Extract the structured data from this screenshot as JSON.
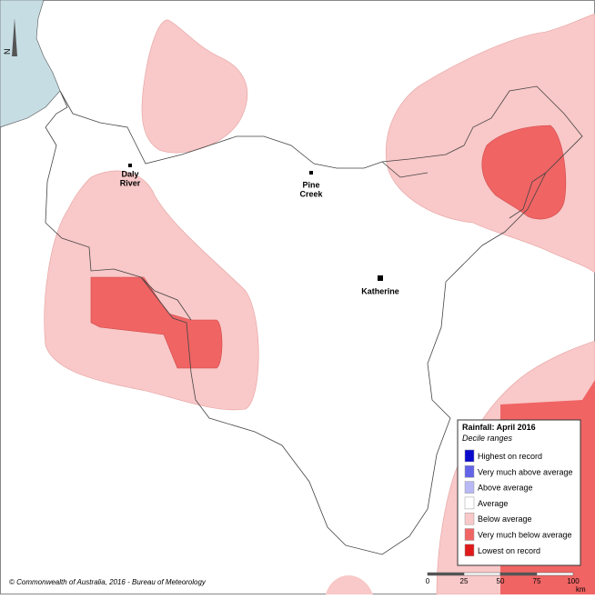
{
  "map": {
    "north_label": "N",
    "places": [
      {
        "lines": [
          "Daly",
          "River"
        ]
      },
      {
        "lines": [
          "Pine",
          "Creek"
        ]
      },
      {
        "lines": [
          "Katherine"
        ]
      }
    ],
    "legend": {
      "title": "Rainfall: April 2016",
      "subtitle": "Decile ranges",
      "items": [
        {
          "label": "Highest on record",
          "color": "#0a0acc"
        },
        {
          "label": "Very much above average",
          "color": "#6464e8"
        },
        {
          "label": "Above average",
          "color": "#b8b8f4"
        },
        {
          "label": "Average",
          "color": "#ffffff"
        },
        {
          "label": "Below average",
          "color": "#f9c8c8"
        },
        {
          "label": "Very much below average",
          "color": "#f06464"
        },
        {
          "label": "Lowest on record",
          "color": "#e01a1a"
        }
      ]
    },
    "copyright": "© Commonwealth of Australia, 2016 - Bureau of Meteorology",
    "scale": {
      "ticks": [
        0,
        25,
        50,
        75,
        100
      ],
      "unit": "km"
    }
  }
}
